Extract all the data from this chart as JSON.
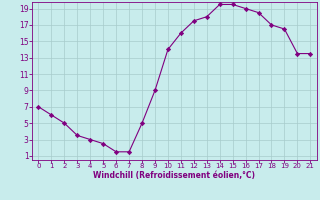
{
  "x": [
    0,
    1,
    2,
    3,
    4,
    5,
    6,
    7,
    8,
    9,
    10,
    11,
    12,
    13,
    14,
    15,
    16,
    17,
    18,
    19,
    20,
    21
  ],
  "y": [
    7.0,
    6.0,
    5.0,
    3.5,
    3.0,
    2.5,
    1.5,
    1.5,
    5.0,
    9.0,
    14.0,
    16.0,
    17.5,
    18.0,
    19.5,
    19.5,
    19.0,
    18.5,
    17.0,
    16.5,
    13.5,
    13.5
  ],
  "line_color": "#800080",
  "marker": "D",
  "marker_size": 2.2,
  "bg_color": "#c8ecec",
  "grid_color": "#a8cccc",
  "xlabel": "Windchill (Refroidissement éolien,°C)",
  "xlabel_color": "#800080",
  "tick_color": "#800080",
  "xlim_min": -0.5,
  "xlim_max": 21.5,
  "ylim_min": 0.5,
  "ylim_max": 19.8,
  "xticks": [
    0,
    1,
    2,
    3,
    4,
    5,
    6,
    7,
    8,
    9,
    10,
    11,
    12,
    13,
    14,
    15,
    16,
    17,
    18,
    19,
    20,
    21
  ],
  "yticks": [
    1,
    3,
    5,
    7,
    9,
    11,
    13,
    15,
    17,
    19
  ],
  "spine_color": "#800080",
  "linewidth": 0.8
}
